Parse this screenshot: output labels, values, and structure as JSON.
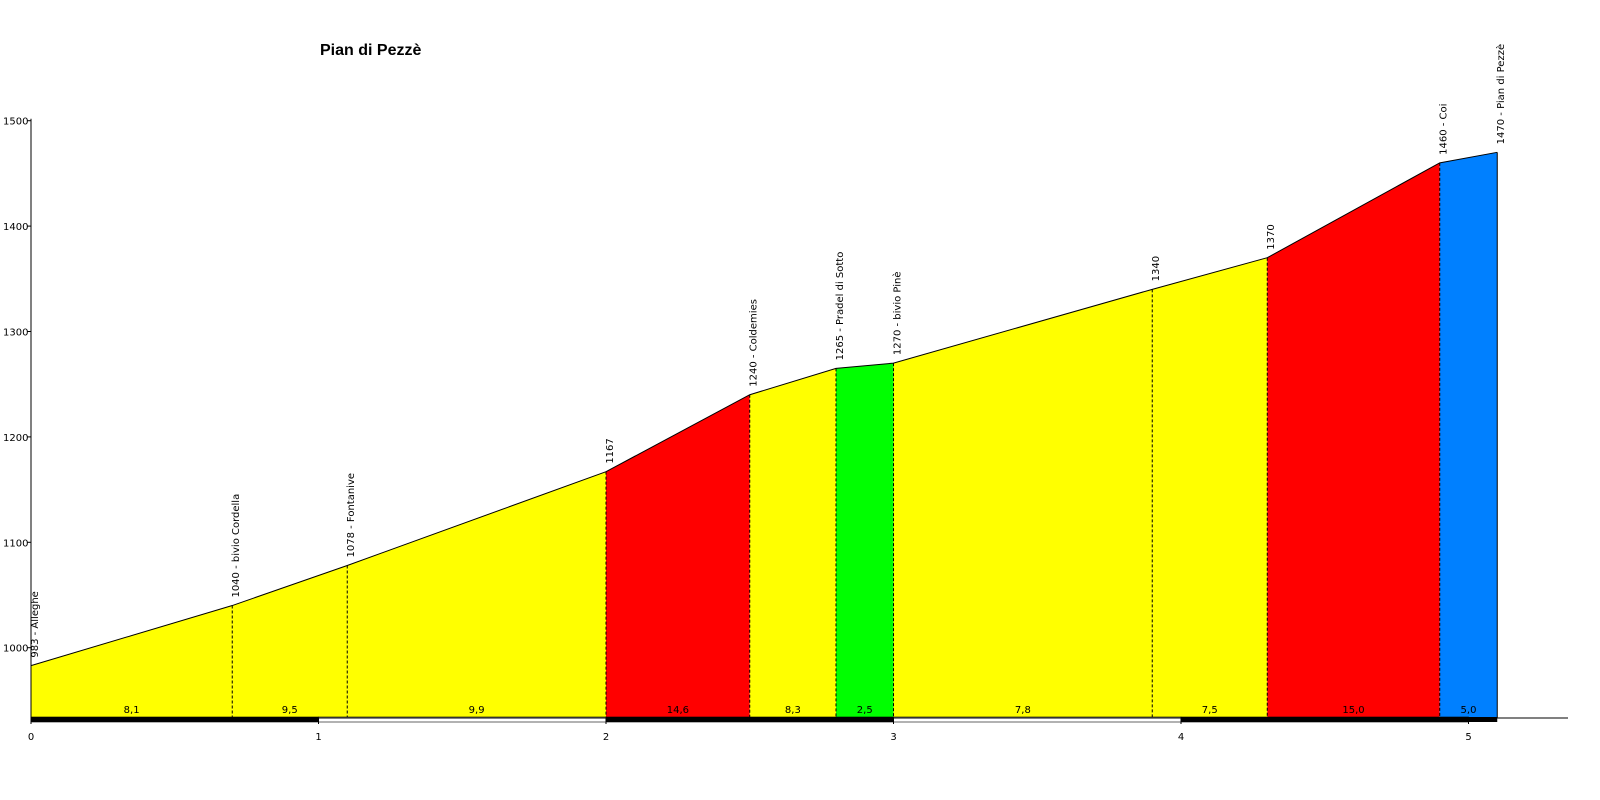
{
  "chart_data": {
    "type": "area",
    "title": "Pian di Pezzè",
    "xlabel": "",
    "ylabel": "",
    "xlim": [
      0,
      5.35
    ],
    "ylim": [
      933,
      1500
    ],
    "x_ticks": [
      "0",
      "1",
      "2",
      "3",
      "4",
      "5"
    ],
    "y_ticks": [
      "1000",
      "1100",
      "1200",
      "1300",
      "1400",
      "1500"
    ],
    "profile": [
      {
        "x": 0.0,
        "y": 983
      },
      {
        "x": 0.7,
        "y": 1040
      },
      {
        "x": 1.1,
        "y": 1078
      },
      {
        "x": 2.0,
        "y": 1167
      },
      {
        "x": 2.5,
        "y": 1240
      },
      {
        "x": 2.8,
        "y": 1265
      },
      {
        "x": 3.0,
        "y": 1270
      },
      {
        "x": 3.9,
        "y": 1340
      },
      {
        "x": 4.3,
        "y": 1370
      },
      {
        "x": 4.9,
        "y": 1460
      },
      {
        "x": 5.1,
        "y": 1470
      }
    ],
    "segments": [
      {
        "from": 0.0,
        "to": 0.7,
        "gradient": "8,1",
        "color": "#ffff00"
      },
      {
        "from": 0.7,
        "to": 1.1,
        "gradient": "9,5",
        "color": "#ffff00"
      },
      {
        "from": 1.1,
        "to": 2.0,
        "gradient": "9,9",
        "color": "#ffff00"
      },
      {
        "from": 2.0,
        "to": 2.5,
        "gradient": "14,6",
        "color": "#ff0000"
      },
      {
        "from": 2.5,
        "to": 2.8,
        "gradient": "8,3",
        "color": "#ffff00"
      },
      {
        "from": 2.8,
        "to": 3.0,
        "gradient": "2,5",
        "color": "#00ff00"
      },
      {
        "from": 3.0,
        "to": 3.9,
        "gradient": "7,8",
        "color": "#ffff00"
      },
      {
        "from": 3.9,
        "to": 4.3,
        "gradient": "7,5",
        "color": "#ffff00"
      },
      {
        "from": 4.3,
        "to": 4.9,
        "gradient": "15,0",
        "color": "#ff0000"
      },
      {
        "from": 4.9,
        "to": 5.1,
        "gradient": "5,0",
        "color": "#0080ff"
      }
    ],
    "points": [
      {
        "x": 0.0,
        "y": 983,
        "label": "983 - Alleghe"
      },
      {
        "x": 0.7,
        "y": 1040,
        "label": "1040 - bivio Cordella"
      },
      {
        "x": 1.1,
        "y": 1078,
        "label": "1078 - Fontanive"
      },
      {
        "x": 2.0,
        "y": 1167,
        "label": "1167"
      },
      {
        "x": 2.5,
        "y": 1240,
        "label": "1240 - Coldemies"
      },
      {
        "x": 2.8,
        "y": 1265,
        "label": "1265 - Pradel di Sotto"
      },
      {
        "x": 3.0,
        "y": 1270,
        "label": "1270 - bivio Pinè"
      },
      {
        "x": 3.9,
        "y": 1340,
        "label": "1340"
      },
      {
        "x": 4.3,
        "y": 1370,
        "label": "1370"
      },
      {
        "x": 4.9,
        "y": 1460,
        "label": "1460 - Coi"
      },
      {
        "x": 5.1,
        "y": 1470,
        "label": "1470 - Pian di Pezzè"
      }
    ],
    "grid": false,
    "legend": "none"
  }
}
